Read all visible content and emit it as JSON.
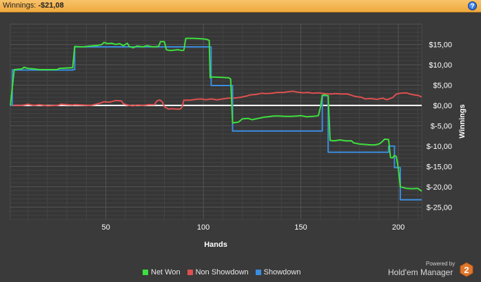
{
  "header": {
    "label": "Winnings:",
    "value": "-$21,08",
    "help_icon": "help-icon"
  },
  "colors": {
    "net_won": "#3ee03e",
    "non_showdown": "#e05050",
    "showdown": "#3a8de0",
    "zero_line": "#ffffff",
    "background": "#3a3a3a"
  },
  "chart_data": {
    "type": "line",
    "xlabel": "Hands",
    "ylabel": "Winnings",
    "xlim": [
      1,
      212
    ],
    "ylim": [
      -28,
      20
    ],
    "x_ticks": [
      50,
      100,
      150,
      200
    ],
    "y_ticks": [
      15,
      10,
      5,
      0,
      -5,
      -10,
      -15,
      -20,
      -25
    ],
    "y_tick_labels": [
      "$15,00",
      "$10,00",
      "$5,00",
      "$0,00",
      "$-5,00",
      "$-10,00",
      "$-15,00",
      "$-20,00",
      "$-25,00"
    ],
    "zero_line": 0,
    "series": [
      {
        "name": "Net Won",
        "key": "net_won",
        "step": false,
        "points": [
          [
            1,
            0
          ],
          [
            3,
            8.8
          ],
          [
            7,
            9
          ],
          [
            8,
            9.4
          ],
          [
            10,
            9.1
          ],
          [
            13,
            9
          ],
          [
            16,
            8.8
          ],
          [
            25,
            8.8
          ],
          [
            26,
            9.1
          ],
          [
            33,
            9.3
          ],
          [
            34,
            14.5
          ],
          [
            38,
            14.4
          ],
          [
            42,
            14.6
          ],
          [
            46,
            14.8
          ],
          [
            48,
            15
          ],
          [
            49,
            15.5
          ],
          [
            51,
            15.2
          ],
          [
            53,
            15.3
          ],
          [
            55,
            15
          ],
          [
            57,
            15.2
          ],
          [
            59,
            14.7
          ],
          [
            61,
            15.3
          ],
          [
            62,
            14.5
          ],
          [
            64,
            14.2
          ],
          [
            66,
            14.6
          ],
          [
            69,
            14.4
          ],
          [
            71,
            14.7
          ],
          [
            74,
            14.4
          ],
          [
            77,
            14.5
          ],
          [
            78,
            15.7
          ],
          [
            80,
            15.7
          ],
          [
            81,
            13.7
          ],
          [
            83,
            13.5
          ],
          [
            87,
            13.7
          ],
          [
            88,
            13.6
          ],
          [
            89,
            13.5
          ],
          [
            90,
            13.6
          ],
          [
            91,
            16.5
          ],
          [
            95,
            16.5
          ],
          [
            99,
            16.4
          ],
          [
            101,
            16.3
          ],
          [
            102,
            16.2
          ],
          [
            103,
            16.0
          ],
          [
            103.5,
            6.8
          ],
          [
            104,
            7.0
          ],
          [
            110,
            6.9
          ],
          [
            112,
            6.8
          ],
          [
            113,
            6.8
          ],
          [
            114,
            6.5
          ],
          [
            115,
            -4.3
          ],
          [
            118,
            -4.1
          ],
          [
            120,
            -3.3
          ],
          [
            123,
            -3.2
          ],
          [
            125,
            -3.5
          ],
          [
            128,
            -3.2
          ],
          [
            131,
            -2.9
          ],
          [
            133,
            -2.8
          ],
          [
            136,
            -2.6
          ],
          [
            139,
            -2.6
          ],
          [
            142,
            -2.7
          ],
          [
            145,
            -2.7
          ],
          [
            148,
            -2.6
          ],
          [
            150,
            -2.5
          ],
          [
            153,
            -2.8
          ],
          [
            156,
            -2.7
          ],
          [
            158,
            -2.6
          ],
          [
            159,
            -2.5
          ],
          [
            160,
            -0.5
          ],
          [
            161,
            2.5
          ],
          [
            162,
            2.6
          ],
          [
            163,
            2.5
          ],
          [
            164,
            2.4
          ],
          [
            165,
            -8.6
          ],
          [
            167,
            -8.7
          ],
          [
            170,
            -8.5
          ],
          [
            173,
            -8.7
          ],
          [
            176,
            -8.7
          ],
          [
            177,
            -9.2
          ],
          [
            180,
            -9.5
          ],
          [
            183,
            -9.6
          ],
          [
            186,
            -9.7
          ],
          [
            188,
            -9.7
          ],
          [
            190,
            -9.5
          ],
          [
            191,
            -9.2
          ],
          [
            193,
            -8.3
          ],
          [
            195,
            -8.4
          ],
          [
            196,
            -12.8
          ],
          [
            197,
            -12.9
          ],
          [
            198,
            -12.3
          ],
          [
            199,
            -12.6
          ],
          [
            200,
            -15.5
          ],
          [
            201,
            -20
          ],
          [
            204,
            -20.4
          ],
          [
            207,
            -20.5
          ],
          [
            210,
            -20.4
          ],
          [
            212,
            -21.1
          ]
        ]
      },
      {
        "name": "Non Showdown",
        "key": "non_showdown",
        "step": false,
        "points": [
          [
            1,
            0
          ],
          [
            7,
            0
          ],
          [
            10,
            0.3
          ],
          [
            13,
            0
          ],
          [
            16,
            0.2
          ],
          [
            20,
            -0.1
          ],
          [
            25,
            0
          ],
          [
            27,
            0.3
          ],
          [
            30,
            0.2
          ],
          [
            33,
            0.1
          ],
          [
            34,
            0.2
          ],
          [
            38,
            0.1
          ],
          [
            42,
            0
          ],
          [
            45,
            0.3
          ],
          [
            48,
            0.7
          ],
          [
            49,
            0.9
          ],
          [
            52,
            0.8
          ],
          [
            55,
            1.2
          ],
          [
            58,
            1.1
          ],
          [
            59,
            0.4
          ],
          [
            62,
            0
          ],
          [
            64,
            -0.1
          ],
          [
            66,
            0.1
          ],
          [
            69,
            0
          ],
          [
            72,
            0.2
          ],
          [
            75,
            0.2
          ],
          [
            76,
            1.0
          ],
          [
            77,
            1.3
          ],
          [
            78,
            1.3
          ],
          [
            79,
            0.8
          ],
          [
            80,
            -0.3
          ],
          [
            82,
            -0.9
          ],
          [
            84,
            -0.8
          ],
          [
            86,
            -0.9
          ],
          [
            88,
            -0.9
          ],
          [
            89,
            -0.5
          ],
          [
            90,
            1.3
          ],
          [
            93,
            1.3
          ],
          [
            96,
            1.5
          ],
          [
            99,
            1.6
          ],
          [
            101,
            1.4
          ],
          [
            104,
            1.6
          ],
          [
            107,
            1.4
          ],
          [
            110,
            1.6
          ],
          [
            113,
            1.8
          ],
          [
            116,
            1.8
          ],
          [
            119,
            2.0
          ],
          [
            122,
            2.3
          ],
          [
            124,
            2.6
          ],
          [
            127,
            2.7
          ],
          [
            130,
            3.0
          ],
          [
            132,
            2.9
          ],
          [
            135,
            3.0
          ],
          [
            138,
            3.2
          ],
          [
            141,
            3.2
          ],
          [
            144,
            3.4
          ],
          [
            146,
            3.5
          ],
          [
            148,
            3.3
          ],
          [
            151,
            3.1
          ],
          [
            154,
            3.2
          ],
          [
            156,
            3.0
          ],
          [
            159,
            3.1
          ],
          [
            162,
            2.9
          ],
          [
            165,
            2.8
          ],
          [
            168,
            2.9
          ],
          [
            171,
            2.8
          ],
          [
            174,
            2.8
          ],
          [
            176,
            2.5
          ],
          [
            178,
            2.2
          ],
          [
            181,
            2.0
          ],
          [
            183,
            1.6
          ],
          [
            186,
            1.7
          ],
          [
            189,
            1.5
          ],
          [
            192,
            1.8
          ],
          [
            194,
            1.4
          ],
          [
            197,
            1.9
          ],
          [
            199,
            2.8
          ],
          [
            201,
            3.0
          ],
          [
            204,
            3.1
          ],
          [
            206,
            2.8
          ],
          [
            208,
            2.6
          ],
          [
            210,
            2.5
          ],
          [
            212,
            2.1
          ]
        ]
      },
      {
        "name": "Showdown",
        "key": "showdown",
        "step": true,
        "points": [
          [
            1,
            0
          ],
          [
            2,
            8.7
          ],
          [
            33,
            8.8
          ],
          [
            34,
            14.4
          ],
          [
            103,
            14.4
          ],
          [
            104,
            4.9
          ],
          [
            114,
            4.9
          ],
          [
            115,
            -6.3
          ],
          [
            160,
            -6.3
          ],
          [
            161,
            2.4
          ],
          [
            163,
            2.4
          ],
          [
            164,
            -11.5
          ],
          [
            194,
            -11.5
          ],
          [
            195,
            -10.0
          ],
          [
            197,
            -10.0
          ],
          [
            198,
            -15.3
          ],
          [
            200,
            -15.3
          ],
          [
            201,
            -23.2
          ],
          [
            212,
            -23.2
          ]
        ]
      }
    ]
  },
  "legend": [
    {
      "label": "Net Won",
      "key": "net_won"
    },
    {
      "label": "Non Showdown",
      "key": "non_showdown"
    },
    {
      "label": "Showdown",
      "key": "showdown"
    }
  ],
  "branding": {
    "powered_by": "Powered by",
    "product": "Hold'em Manager",
    "logo_digit": "2"
  }
}
